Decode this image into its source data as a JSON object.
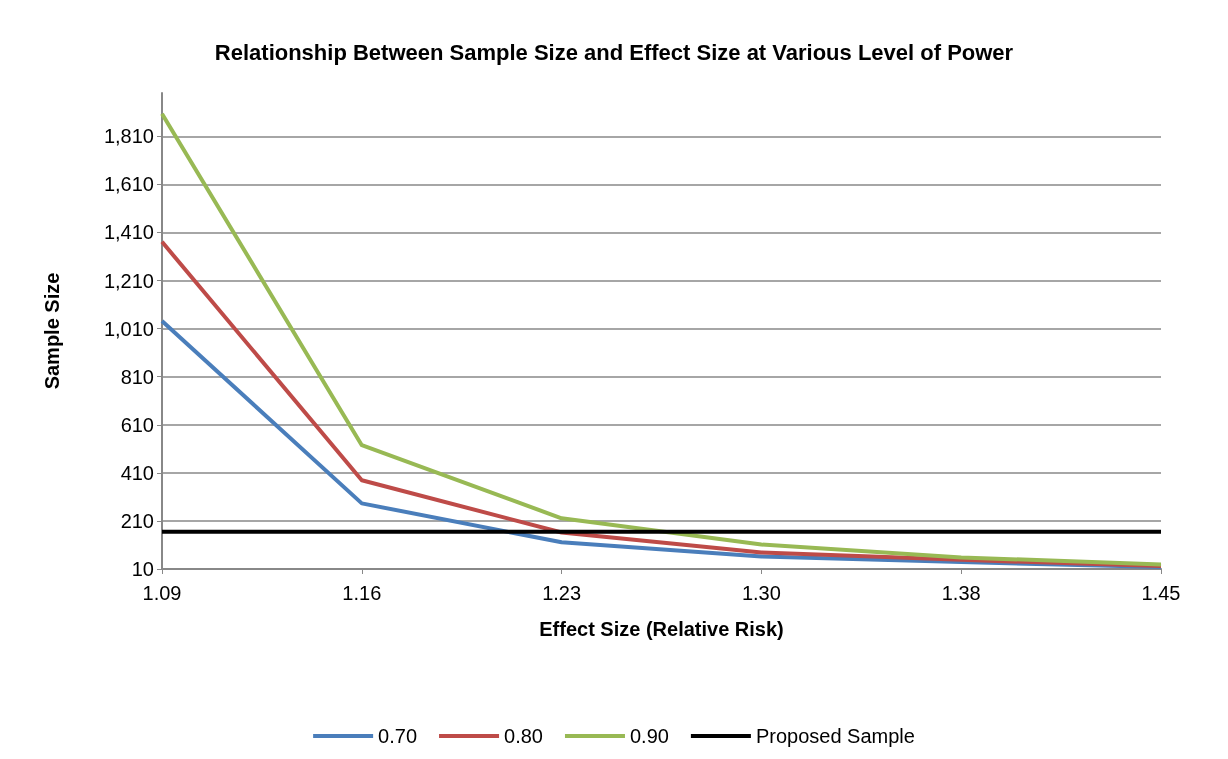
{
  "chart_data": {
    "type": "line",
    "title": "Relationship Between Sample Size and Effect Size at Various Level of Power",
    "xlabel": "Effect Size (Relative Risk)",
    "ylabel": "Sample Size",
    "categories": [
      "1.09",
      "1.16",
      "1.23",
      "1.30",
      "1.38",
      "1.45"
    ],
    "series": [
      {
        "name": "0.70",
        "color": "#4a7ebb",
        "values": [
          1042,
          283,
          121,
          62,
          39,
          18
        ]
      },
      {
        "name": "0.80",
        "color": "#be4b48",
        "values": [
          1371,
          379,
          162,
          79,
          48,
          22
        ]
      },
      {
        "name": "0.90",
        "color": "#98b954",
        "values": [
          1904,
          525,
          221,
          112,
          58,
          29
        ]
      },
      {
        "name": "Proposed Sample",
        "color": "#000000",
        "values": [
          165,
          165,
          165,
          165,
          165,
          165
        ]
      }
    ],
    "ylim": [
      10,
      1990
    ],
    "yticks": [
      {
        "value": 10,
        "label": "10"
      },
      {
        "value": 210,
        "label": "210"
      },
      {
        "value": 410,
        "label": "410"
      },
      {
        "value": 610,
        "label": "610"
      },
      {
        "value": 810,
        "label": "810"
      },
      {
        "value": 1010,
        "label": "1,010"
      },
      {
        "value": 1210,
        "label": "1,210"
      },
      {
        "value": 1410,
        "label": "1,410"
      },
      {
        "value": 1610,
        "label": "1,610"
      },
      {
        "value": 1810,
        "label": "1,810"
      }
    ],
    "grid": "y",
    "legend": "bottom",
    "marker": "none",
    "line_style": "solid"
  }
}
